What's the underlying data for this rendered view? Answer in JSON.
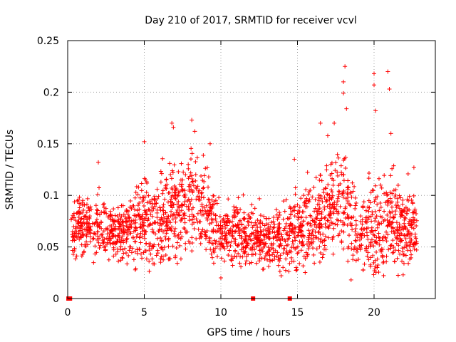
{
  "chart_data": {
    "type": "scatter",
    "title": "Day 210 of 2017, SRMTID for receiver vcvl",
    "xlabel": "GPS time / hours",
    "ylabel": "SRMTID / TECUs",
    "xlim": [
      0,
      24
    ],
    "ylim": [
      0,
      0.25
    ],
    "grid": true,
    "x_ticks": [
      0,
      5,
      10,
      15,
      20
    ],
    "x_tick_labels": [
      "0",
      "5",
      "10",
      "15",
      "20"
    ],
    "y_ticks": [
      0,
      0.05,
      0.1,
      0.15,
      0.2,
      0.25
    ],
    "y_tick_labels": [
      "0",
      "0.05",
      "0.1",
      "0.15",
      "0.2",
      "0.25"
    ],
    "marker": "plus",
    "color": "#ff0000",
    "note": "Dense scatter of ~2000 points; represented below by estimated envelope profile (x in hours, y in TECU) plus notable outliers and zero-valued points.",
    "profile": [
      {
        "x": 0.2,
        "mean": 0.068,
        "spread": 0.018,
        "max": 0.096
      },
      {
        "x": 1.0,
        "mean": 0.072,
        "spread": 0.018,
        "max": 0.1
      },
      {
        "x": 2.0,
        "mean": 0.07,
        "spread": 0.02,
        "max": 0.132
      },
      {
        "x": 3.0,
        "mean": 0.062,
        "spread": 0.018,
        "max": 0.1
      },
      {
        "x": 4.0,
        "mean": 0.068,
        "spread": 0.02,
        "max": 0.12
      },
      {
        "x": 5.0,
        "mean": 0.078,
        "spread": 0.025,
        "max": 0.152
      },
      {
        "x": 6.0,
        "mean": 0.072,
        "spread": 0.028,
        "max": 0.14
      },
      {
        "x": 7.0,
        "mean": 0.088,
        "spread": 0.03,
        "max": 0.17
      },
      {
        "x": 8.0,
        "mean": 0.094,
        "spread": 0.028,
        "max": 0.172
      },
      {
        "x": 9.0,
        "mean": 0.085,
        "spread": 0.025,
        "max": 0.15
      },
      {
        "x": 10.0,
        "mean": 0.06,
        "spread": 0.02,
        "max": 0.12
      },
      {
        "x": 11.0,
        "mean": 0.062,
        "spread": 0.02,
        "max": 0.118
      },
      {
        "x": 12.0,
        "mean": 0.058,
        "spread": 0.018,
        "max": 0.108
      },
      {
        "x": 13.0,
        "mean": 0.055,
        "spread": 0.018,
        "max": 0.11
      },
      {
        "x": 14.0,
        "mean": 0.058,
        "spread": 0.02,
        "max": 0.112
      },
      {
        "x": 15.0,
        "mean": 0.068,
        "spread": 0.025,
        "max": 0.135
      },
      {
        "x": 16.0,
        "mean": 0.07,
        "spread": 0.025,
        "max": 0.128
      },
      {
        "x": 17.0,
        "mean": 0.09,
        "spread": 0.03,
        "max": 0.165
      },
      {
        "x": 18.0,
        "mean": 0.098,
        "spread": 0.035,
        "max": 0.226
      },
      {
        "x": 19.0,
        "mean": 0.06,
        "spread": 0.025,
        "max": 0.11
      },
      {
        "x": 20.0,
        "mean": 0.065,
        "spread": 0.03,
        "max": 0.218
      },
      {
        "x": 21.0,
        "mean": 0.08,
        "spread": 0.035,
        "max": 0.22
      },
      {
        "x": 22.0,
        "mean": 0.07,
        "spread": 0.025,
        "max": 0.128
      },
      {
        "x": 22.8,
        "mean": 0.068,
        "spread": 0.02,
        "max": 0.125
      }
    ],
    "outliers": [
      {
        "x": 6.8,
        "y": 0.17
      },
      {
        "x": 6.9,
        "y": 0.166
      },
      {
        "x": 8.1,
        "y": 0.173
      },
      {
        "x": 8.3,
        "y": 0.162
      },
      {
        "x": 5.0,
        "y": 0.152
      },
      {
        "x": 9.3,
        "y": 0.15
      },
      {
        "x": 16.5,
        "y": 0.17
      },
      {
        "x": 17.4,
        "y": 0.17
      },
      {
        "x": 18.0,
        "y": 0.199
      },
      {
        "x": 18.0,
        "y": 0.21
      },
      {
        "x": 18.1,
        "y": 0.225
      },
      {
        "x": 18.2,
        "y": 0.184
      },
      {
        "x": 20.0,
        "y": 0.218
      },
      {
        "x": 20.0,
        "y": 0.207
      },
      {
        "x": 20.1,
        "y": 0.182
      },
      {
        "x": 20.9,
        "y": 0.22
      },
      {
        "x": 21.0,
        "y": 0.203
      },
      {
        "x": 21.1,
        "y": 0.16
      },
      {
        "x": 2.0,
        "y": 0.132
      },
      {
        "x": 14.8,
        "y": 0.135
      },
      {
        "x": 22.6,
        "y": 0.127
      },
      {
        "x": 10.0,
        "y": 0.02
      },
      {
        "x": 18.5,
        "y": 0.018
      },
      {
        "x": 21.9,
        "y": 0.023
      }
    ],
    "zero_points_x": [
      0.05,
      0.15,
      12.1,
      14.5
    ]
  }
}
